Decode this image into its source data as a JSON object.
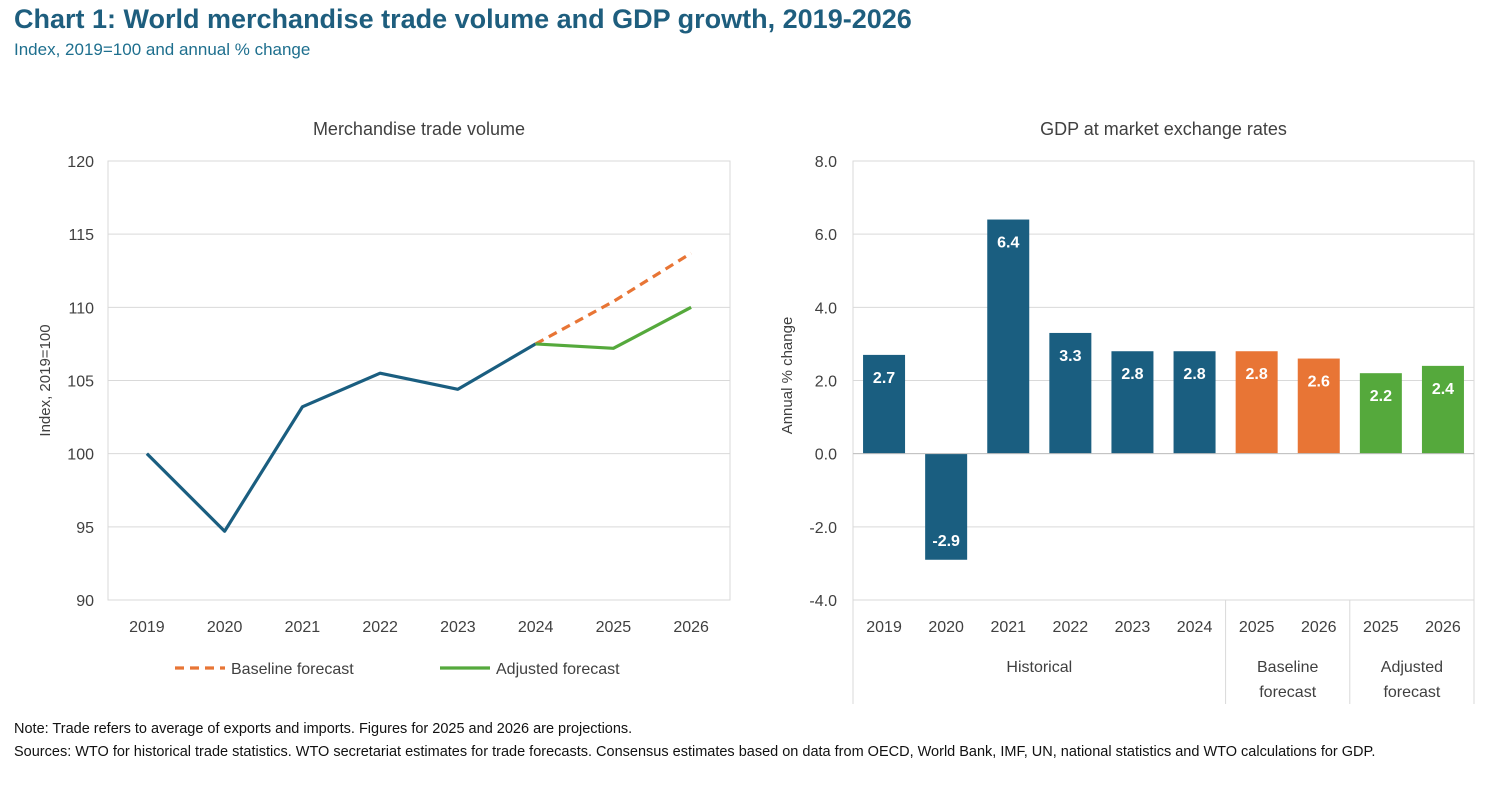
{
  "header": {
    "title": "Chart 1: World merchandise trade volume and GDP growth, 2019-2026",
    "subtitle": "Index, 2019=100 and annual % change"
  },
  "colors": {
    "historical": "#1a5e80",
    "baseline": "#e87535",
    "adjusted": "#55a93c",
    "grid": "#d9d9d9",
    "axis_text": "#404040"
  },
  "chart_data": [
    {
      "type": "line",
      "title": "Merchandise trade volume",
      "ylabel": "Index, 2019=100",
      "xlabel": "",
      "ylim": [
        90,
        120
      ],
      "yticks": [
        "90",
        "95",
        "100",
        "105",
        "110",
        "115",
        "120"
      ],
      "x": [
        "2019",
        "2020",
        "2021",
        "2022",
        "2023",
        "2024",
        "2025",
        "2026"
      ],
      "grid": true,
      "legend_placement": "bottom",
      "series": [
        {
          "name": "",
          "style": "solid",
          "color": "#1a5e80",
          "x": [
            "2019",
            "2020",
            "2021",
            "2022",
            "2023",
            "2024"
          ],
          "values": [
            100,
            94.7,
            103.2,
            105.5,
            104.4,
            107.5
          ]
        },
        {
          "name": "Baseline forecast",
          "style": "dashed",
          "color": "#e87535",
          "x": [
            "2024",
            "2025",
            "2026"
          ],
          "values": [
            107.5,
            110.4,
            113.7
          ]
        },
        {
          "name": "Adjusted forecast",
          "style": "solid",
          "color": "#55a93c",
          "x": [
            "2024",
            "2025",
            "2026"
          ],
          "values": [
            107.5,
            107.2,
            110.0
          ]
        }
      ]
    },
    {
      "type": "bar",
      "title": "GDP at market exchange rates",
      "ylabel": "Annual % change",
      "xlabel": "",
      "ylim": [
        -4,
        8
      ],
      "yticks": [
        "-4.0",
        "-2.0",
        "0.0",
        "2.0",
        "4.0",
        "6.0",
        "8.0"
      ],
      "grid": true,
      "categories": [
        "2019",
        "2020",
        "2021",
        "2022",
        "2023",
        "2024",
        "2025",
        "2026",
        "2025",
        "2026"
      ],
      "values": [
        2.7,
        -2.9,
        6.4,
        3.3,
        2.8,
        2.8,
        2.8,
        2.6,
        2.2,
        2.4
      ],
      "data_labels": [
        "2.7",
        "-2.9",
        "6.4",
        "3.3",
        "2.8",
        "2.8",
        "2.8",
        "2.6",
        "2.2",
        "2.4"
      ],
      "bar_groups": [
        "historical",
        "historical",
        "historical",
        "historical",
        "historical",
        "historical",
        "baseline",
        "baseline",
        "adjusted",
        "adjusted"
      ],
      "groups": [
        {
          "key": "historical",
          "label": [
            "Historical"
          ],
          "count": 6
        },
        {
          "key": "baseline",
          "label": [
            "Baseline",
            "forecast"
          ],
          "count": 2
        },
        {
          "key": "adjusted",
          "label": [
            "Adjusted",
            "forecast"
          ],
          "count": 2
        }
      ]
    }
  ],
  "notes": {
    "note": "Note: Trade refers to average of exports and imports. Figures for 2025 and 2026 are projections.",
    "sources": "Sources: WTO for historical trade statistics. WTO secretariat estimates for trade forecasts.  Consensus estimates based on data from OECD, World Bank, IMF, UN, national statistics and WTO calculations for GDP."
  }
}
